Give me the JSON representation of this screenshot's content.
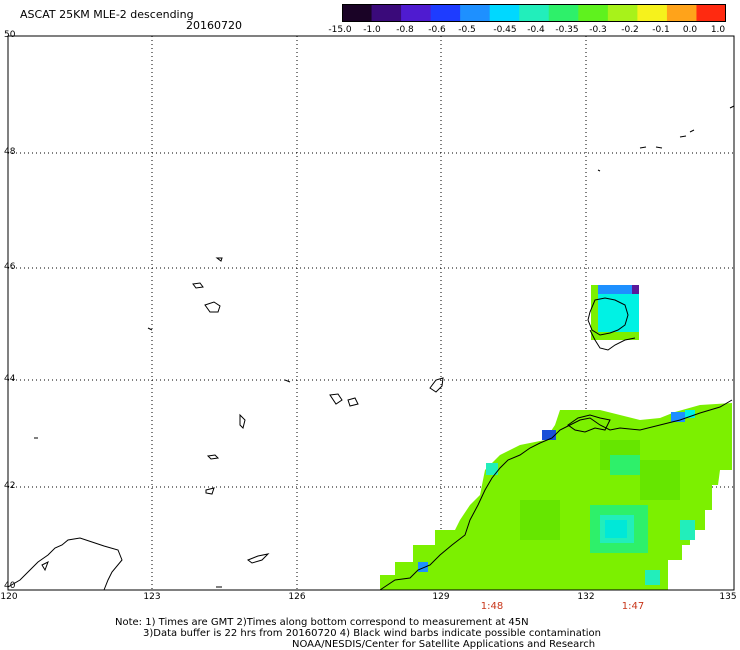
{
  "title": "ASCAT 25KM MLE-2 descending",
  "date": "20160720",
  "colorbar": {
    "labels": [
      "-15.0",
      "-1.0",
      "-0.8",
      "-0.6",
      "-0.5",
      "-0.45",
      "-0.4",
      "-0.35",
      "-0.3",
      "-0.2",
      "-0.1",
      "0.0",
      "1.0"
    ],
    "colors": [
      "#1a0326",
      "#3a0a7a",
      "#4f1bd0",
      "#1e3cff",
      "#1e90ff",
      "#00d8ff",
      "#22eebb",
      "#2ef06a",
      "#5ff21e",
      "#a8f21a",
      "#f6f21c",
      "#ffa31a",
      "#ff2a10"
    ]
  },
  "map": {
    "y_axis_labels": [
      "50",
      "48",
      "46",
      "44",
      "42",
      "40"
    ],
    "x_axis_labels": [
      "120",
      "123",
      "126",
      "129",
      "132",
      "135"
    ],
    "pass_times": [
      "1:48",
      "1:47"
    ],
    "colors": {
      "coast": "#000000",
      "grid": "#000000",
      "time_label": "#c8361a",
      "swath": "#7cf000",
      "swath_light": "#8af520",
      "swath_dark": "#66e600",
      "cyan": "#00f2e4",
      "blue": "#1e90ff",
      "deep_blue": "#1a4fd8",
      "purple": "#5a1a9a"
    }
  },
  "notes": {
    "line1": "Note: 1) Times are GMT 2)Times along bottom correspond to measurement at 45N",
    "line2": "3)Data buffer is 22 hrs from 20160720 4) Black wind barbs indicate possible contamination",
    "line3": "NOAA/NESDIS/Center for Satellite Applications and Research"
  }
}
